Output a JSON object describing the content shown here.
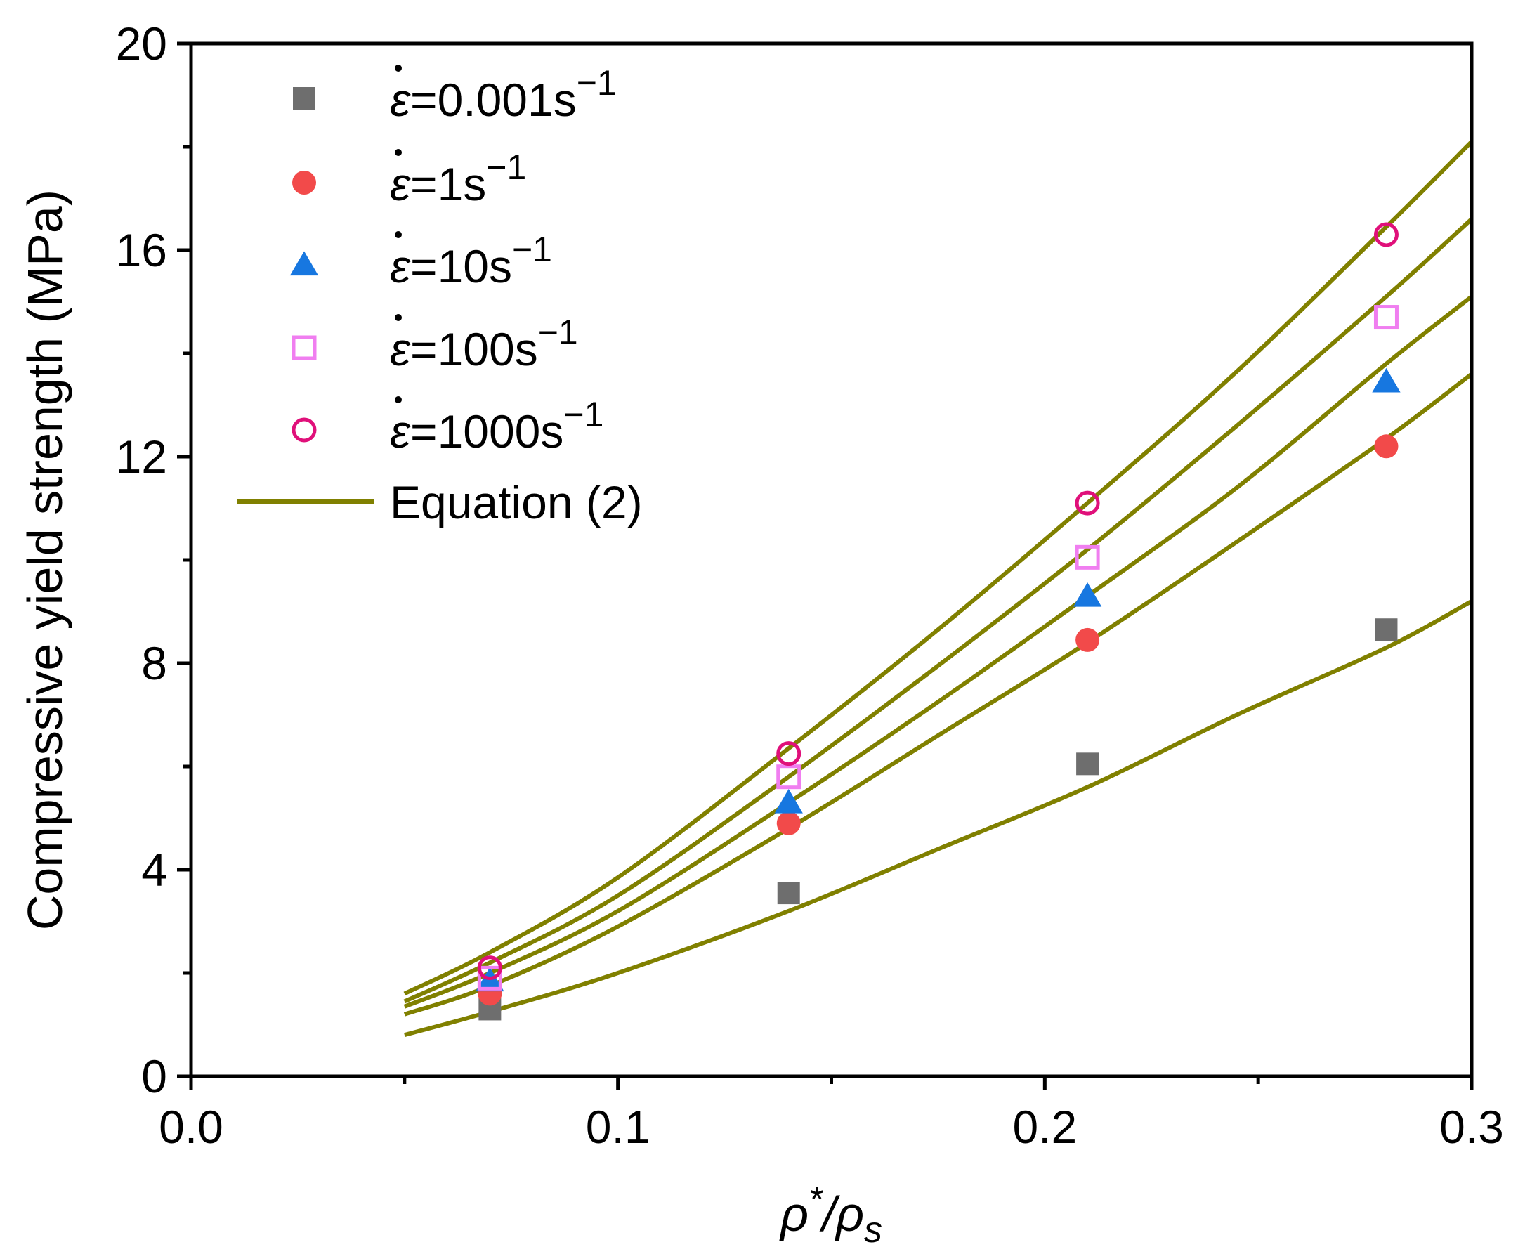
{
  "chart_data": {
    "type": "scatter",
    "title": "",
    "xlabel": "ρ*/ρs",
    "xlabel_parts": {
      "main": "ρ",
      "sup": "*",
      "slash": "/",
      "main2": "ρ",
      "sub": "s"
    },
    "ylabel": "Compressive yield strength (MPa)",
    "xlim": [
      0,
      0.3
    ],
    "ylim": [
      0,
      20
    ],
    "x_ticks": [
      0.0,
      0.1,
      0.2,
      0.3
    ],
    "x_tick_labels": [
      "0.0",
      "0.1",
      "0.2",
      "0.3"
    ],
    "y_ticks": [
      0,
      4,
      8,
      12,
      16,
      20
    ],
    "y_tick_labels": [
      "0",
      "4",
      "8",
      "12",
      "16",
      "20"
    ],
    "grid": false,
    "legend_position": "top-left",
    "series": [
      {
        "name": "ε=0.001s−1",
        "rate": "0.001",
        "marker": "square",
        "filled": true,
        "color": "#6e6e6e",
        "x": [
          0.07,
          0.14,
          0.21,
          0.28
        ],
        "y": [
          1.3,
          3.55,
          6.05,
          8.65
        ]
      },
      {
        "name": "ε=1s−1",
        "rate": "1",
        "marker": "circle",
        "filled": true,
        "color": "#f24a4a",
        "x": [
          0.07,
          0.14,
          0.21,
          0.28
        ],
        "y": [
          1.6,
          4.9,
          8.45,
          12.2
        ]
      },
      {
        "name": "ε=10s−1",
        "rate": "10",
        "marker": "triangle",
        "filled": true,
        "color": "#1777e0",
        "x": [
          0.07,
          0.14,
          0.21,
          0.28
        ],
        "y": [
          1.85,
          5.3,
          9.3,
          13.45
        ]
      },
      {
        "name": "ε=100s−1",
        "rate": "100",
        "marker": "square",
        "filled": false,
        "color": "#f07ef0",
        "x": [
          0.07,
          0.14,
          0.21,
          0.28
        ],
        "y": [
          1.9,
          5.8,
          10.05,
          14.7
        ]
      },
      {
        "name": "ε=1000s−1",
        "rate": "1000",
        "marker": "circle",
        "filled": false,
        "color": "#e0107a",
        "x": [
          0.07,
          0.14,
          0.21,
          0.28
        ],
        "y": [
          2.1,
          6.25,
          11.1,
          16.3
        ]
      }
    ],
    "fit_lines": {
      "name": "Equation (2)",
      "color": "#808000",
      "curves": [
        {
          "x": [
            0.05,
            0.07,
            0.1,
            0.14,
            0.175,
            0.21,
            0.245,
            0.28,
            0.3
          ],
          "y": [
            0.8,
            1.25,
            2.0,
            3.2,
            4.4,
            5.6,
            7.0,
            8.3,
            9.2
          ]
        },
        {
          "x": [
            0.05,
            0.07,
            0.1,
            0.14,
            0.175,
            0.21,
            0.245,
            0.28,
            0.3
          ],
          "y": [
            1.2,
            1.75,
            2.9,
            4.8,
            6.6,
            8.4,
            10.35,
            12.35,
            13.6
          ]
        },
        {
          "x": [
            0.05,
            0.07,
            0.1,
            0.14,
            0.175,
            0.21,
            0.245,
            0.28,
            0.3
          ],
          "y": [
            1.35,
            2.0,
            3.2,
            5.3,
            7.25,
            9.3,
            11.4,
            13.8,
            15.1
          ]
        },
        {
          "x": [
            0.05,
            0.07,
            0.1,
            0.14,
            0.175,
            0.21,
            0.245,
            0.28,
            0.3
          ],
          "y": [
            1.45,
            2.2,
            3.5,
            5.8,
            7.95,
            10.2,
            12.6,
            15.1,
            16.6
          ]
        },
        {
          "x": [
            0.05,
            0.07,
            0.1,
            0.14,
            0.175,
            0.21,
            0.245,
            0.28,
            0.3
          ],
          "y": [
            1.6,
            2.4,
            3.85,
            6.35,
            8.65,
            11.1,
            13.65,
            16.45,
            18.1
          ]
        }
      ]
    },
    "legend": {
      "entries": [
        {
          "symbol": "ε",
          "eq": "=",
          "value": "0.001",
          "unit": "s",
          "exp": "−1"
        },
        {
          "symbol": "ε",
          "eq": "=",
          "value": "1",
          "unit": "s",
          "exp": "−1"
        },
        {
          "symbol": "ε",
          "eq": "=",
          "value": "10",
          "unit": "s",
          "exp": "−1"
        },
        {
          "symbol": "ε",
          "eq": "=",
          "value": "100",
          "unit": "s",
          "exp": "−1"
        },
        {
          "symbol": "ε",
          "eq": "=",
          "value": "1000",
          "unit": "s",
          "exp": "−1"
        }
      ],
      "line_label": "Equation (2)"
    }
  }
}
